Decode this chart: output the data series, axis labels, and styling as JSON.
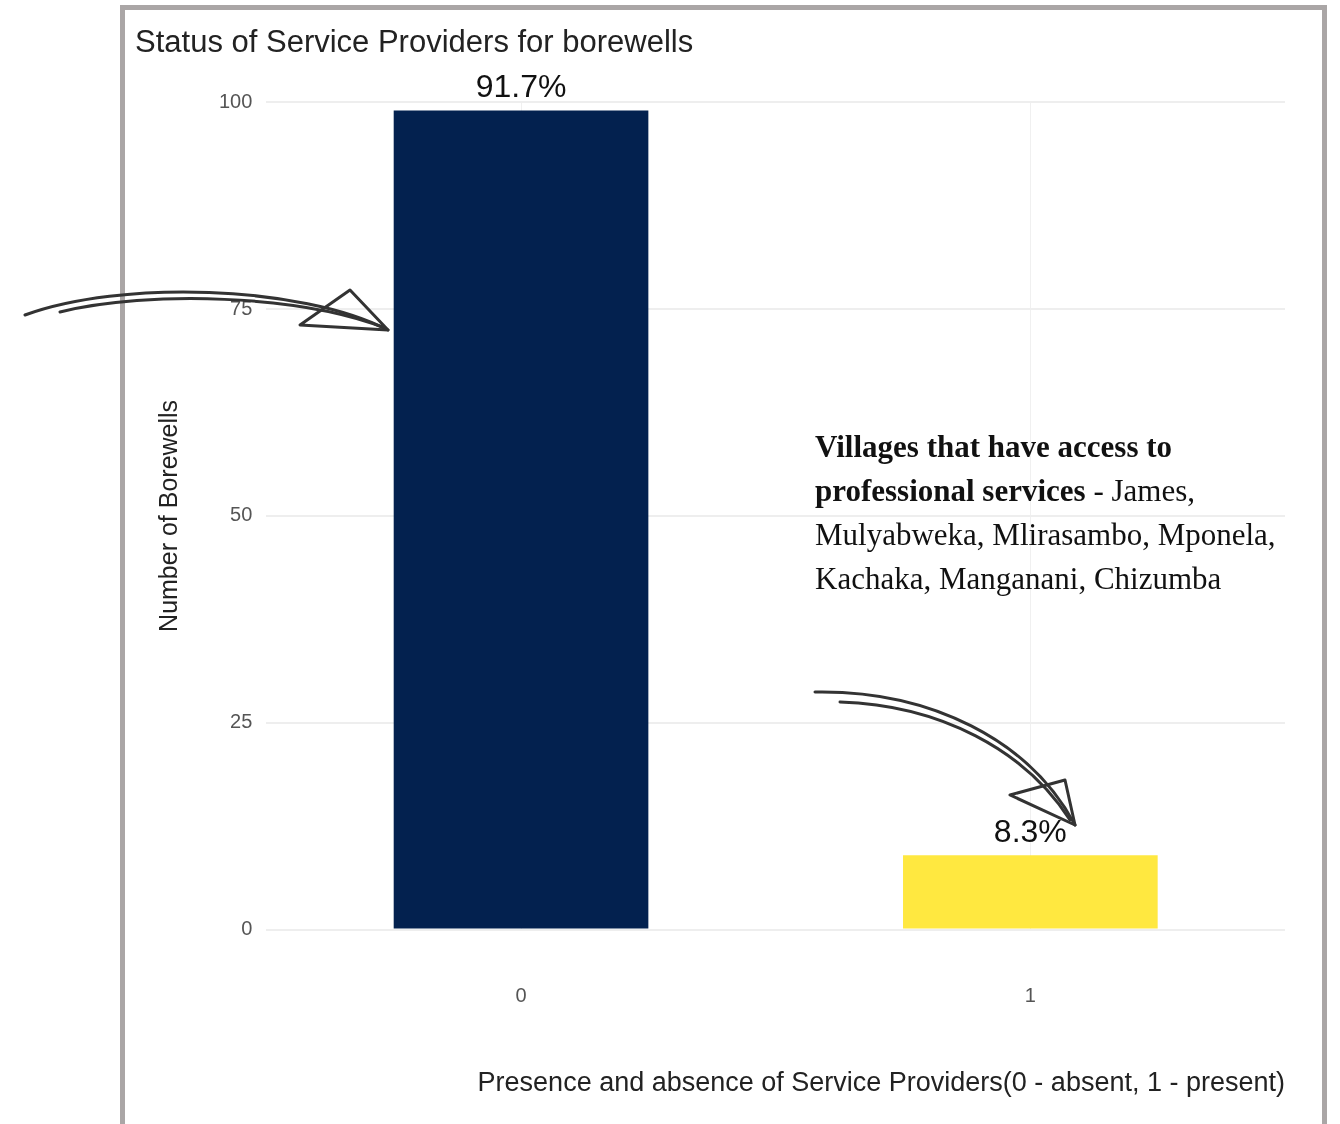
{
  "chart_data": {
    "type": "bar",
    "title": "Status of Service Providers for borewells",
    "xlabel": "Presence and absence of Service Providers(0 - absent, 1 - present)",
    "ylabel": "Number of Borewells",
    "categories": [
      "0",
      "1"
    ],
    "values": [
      99,
      9
    ],
    "colors": [
      "#03214f",
      "#ffe840"
    ],
    "ylim": [
      0,
      100
    ],
    "yticks": [
      0,
      25,
      50,
      75,
      100
    ],
    "grid": true,
    "legend": false,
    "annotations": [
      {
        "text": "91.7%",
        "x": "0",
        "y": 99
      },
      {
        "text": "8.3%",
        "x": "1",
        "y": 9
      },
      "Villages that have access to professional services",
      "- James, Mulyabweka, Mlirasambo, Mponela, Kachaka, Manganani, Chizumba"
    ]
  }
}
